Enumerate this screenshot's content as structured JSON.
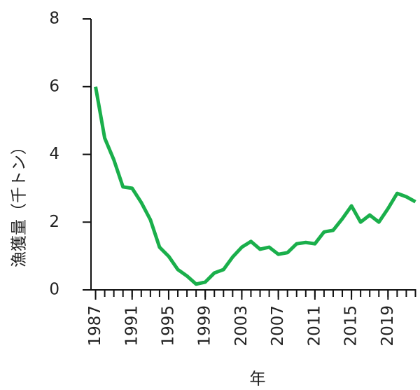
{
  "chart_data": {
    "type": "line",
    "x_label": "年",
    "y_label": "漁獲量（千トン）",
    "x": [
      1987,
      1988,
      1989,
      1990,
      1991,
      1992,
      1993,
      1994,
      1995,
      1996,
      1997,
      1998,
      1999,
      2000,
      2001,
      2002,
      2003,
      2004,
      2005,
      2006,
      2007,
      2008,
      2009,
      2010,
      2011,
      2012,
      2013,
      2014,
      2015,
      2016,
      2017,
      2018,
      2019,
      2020,
      2021,
      2022
    ],
    "series": [
      {
        "color": "#1aaf4b",
        "values": [
          6.0,
          4.48,
          3.84,
          3.04,
          3.0,
          2.58,
          2.07,
          1.26,
          0.99,
          0.6,
          0.41,
          0.17,
          0.23,
          0.5,
          0.6,
          0.97,
          1.26,
          1.43,
          1.2,
          1.26,
          1.05,
          1.1,
          1.36,
          1.4,
          1.36,
          1.71,
          1.76,
          2.1,
          2.48,
          2.0,
          2.21,
          2.0,
          2.4,
          2.85,
          2.75,
          2.6
        ]
      }
    ],
    "xlim": [
      1986.5,
      2022.5
    ],
    "xticks": [
      1987,
      1991,
      1995,
      1999,
      2003,
      2007,
      2011,
      2015,
      2019
    ],
    "ylim": [
      0,
      8
    ],
    "yticks": [
      0,
      2,
      4,
      6,
      8
    ]
  }
}
